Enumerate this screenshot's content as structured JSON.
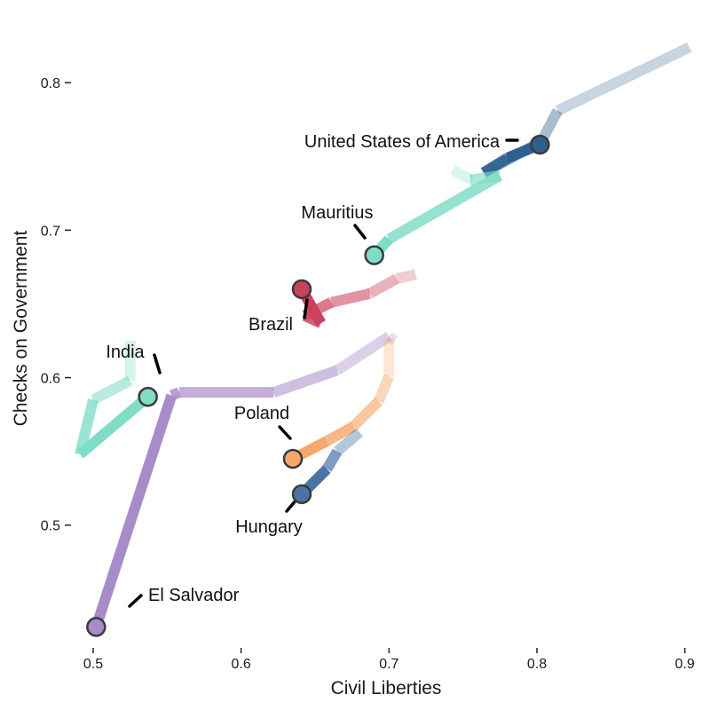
{
  "chart_data": {
    "type": "line",
    "title": "",
    "xlabel": "Civil Liberties",
    "ylabel": "Checks on Government",
    "xlim": [
      0.485,
      0.905
    ],
    "ylim": [
      0.418,
      0.838
    ],
    "x_ticks": [
      0.5,
      0.6,
      0.7,
      0.8,
      0.9
    ],
    "y_ticks": [
      0.5,
      0.6,
      0.7,
      0.8
    ],
    "x_tick_labels": [
      "0.5",
      "0.6",
      "0.7",
      "0.8",
      "0.9"
    ],
    "y_tick_labels": [
      "0.5",
      "0.6",
      "0.7",
      "0.8"
    ],
    "grid": false,
    "legend": "none",
    "marker_style": "circle at latest point with dark outline; paths fade toward older values",
    "series": [
      {
        "name": "United States of America",
        "color": "#2E5F8F",
        "points": [
          [
            0.903,
            0.824
          ],
          [
            0.814,
            0.781
          ],
          [
            0.803,
            0.76
          ],
          [
            0.786,
            0.751
          ],
          [
            0.764,
            0.739
          ],
          [
            0.78,
            0.749
          ],
          [
            0.802,
            0.758
          ]
        ]
      },
      {
        "name": "Mauritius",
        "color": "#7FDCC6",
        "points": [
          [
            0.743,
            0.741
          ],
          [
            0.756,
            0.734
          ],
          [
            0.755,
            0.734
          ],
          [
            0.775,
            0.737
          ],
          [
            0.7,
            0.694
          ],
          [
            0.69,
            0.683
          ]
        ]
      },
      {
        "name": "Brazil",
        "color": "#C9415A",
        "points": [
          [
            0.718,
            0.67
          ],
          [
            0.705,
            0.667
          ],
          [
            0.687,
            0.657
          ],
          [
            0.661,
            0.651
          ],
          [
            0.643,
            0.642
          ],
          [
            0.654,
            0.637
          ],
          [
            0.641,
            0.66
          ]
        ]
      },
      {
        "name": "India",
        "color": "#7FDCC6",
        "points": [
          [
            0.525,
            0.625
          ],
          [
            0.525,
            0.598
          ],
          [
            0.5,
            0.585
          ],
          [
            0.491,
            0.548
          ],
          [
            0.537,
            0.587
          ]
        ]
      },
      {
        "name": "El Salvador",
        "color": "#A88CC8",
        "points": [
          [
            0.704,
            0.625
          ],
          [
            0.7,
            0.628
          ],
          [
            0.665,
            0.605
          ],
          [
            0.622,
            0.59
          ],
          [
            0.558,
            0.59
          ],
          [
            0.553,
            0.588
          ],
          [
            0.502,
            0.431
          ]
        ]
      },
      {
        "name": "Poland",
        "color": "#F6A86C",
        "points": [
          [
            0.7,
            0.627
          ],
          [
            0.7,
            0.601
          ],
          [
            0.693,
            0.584
          ],
          [
            0.676,
            0.567
          ],
          [
            0.658,
            0.557
          ],
          [
            0.635,
            0.545
          ]
        ]
      },
      {
        "name": "Hungary",
        "color": "#4A74A4",
        "points": [
          [
            0.68,
            0.563
          ],
          [
            0.665,
            0.55
          ],
          [
            0.658,
            0.538
          ],
          [
            0.641,
            0.521
          ]
        ]
      }
    ]
  }
}
